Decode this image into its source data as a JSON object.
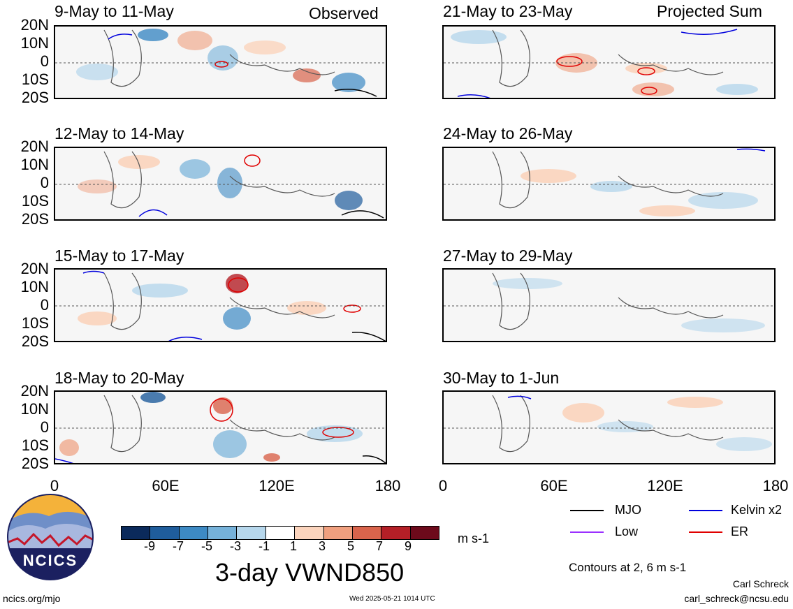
{
  "column_labels": {
    "left": "Observed",
    "right": "Projected Sum"
  },
  "lat_labels": [
    "20N",
    "10N",
    "0",
    "10S",
    "20S"
  ],
  "lon_labels": [
    "0",
    "60E",
    "120E",
    "180"
  ],
  "panels": {
    "left": [
      "9-May to 11-May",
      "12-May to 14-May",
      "15-May to 17-May",
      "18-May to 20-May"
    ],
    "right": [
      "21-May to 23-May",
      "24-May to 26-May",
      "27-May to 29-May",
      "30-May to 1-Jun"
    ]
  },
  "colorbar": {
    "ticks": [
      "-9",
      "-7",
      "-5",
      "-3",
      "-1",
      "1",
      "3",
      "5",
      "7",
      "9"
    ],
    "colors": [
      "#0b2a5b",
      "#1f5d9c",
      "#3d8ac4",
      "#76b2da",
      "#b6d7ec",
      "#ffffff",
      "#fbd4bd",
      "#f0a07f",
      "#d9644c",
      "#b41f27",
      "#6d0a1b"
    ],
    "units": "m s-1"
  },
  "title": "3-day VWND850",
  "legend": [
    {
      "label": "MJO",
      "color": "#000000"
    },
    {
      "label": "Kelvin x2",
      "color": "#0000dd"
    },
    {
      "label": "Low",
      "color": "#9b30ff"
    },
    {
      "label": "ER",
      "color": "#e00000"
    }
  ],
  "contour_note": "Contours at 2, 6 m s-1",
  "footer": {
    "site": "ncics.org/mjo",
    "timestamp": "Wed 2025-05-21 1014 UTC",
    "author": "Carl Schreck",
    "email": "carl_schreck@ncsu.edu"
  },
  "logo_text": "NCICS"
}
